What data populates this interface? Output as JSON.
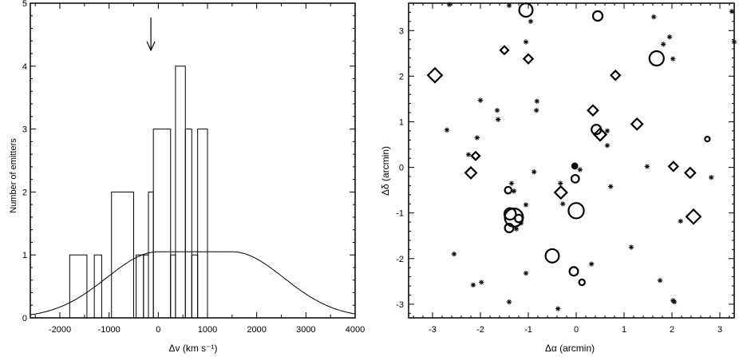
{
  "chart_data": [
    {
      "type": "histogram",
      "xlabel": "Δv (km s⁻¹)",
      "ylabel": "Number of emitters",
      "xlim": [
        -2600,
        4000
      ],
      "ylim": [
        0,
        5
      ],
      "x_ticks": [
        -2000,
        -1000,
        0,
        1000,
        2000,
        3000,
        4000
      ],
      "x_tick_labels": [
        "-2000",
        "-1000",
        "0",
        "1000",
        "2000",
        "3000",
        "4000"
      ],
      "y_ticks": [
        0,
        1,
        2,
        3,
        4,
        5
      ],
      "y_tick_labels": [
        "0",
        "1",
        "2",
        "3",
        "4",
        "5"
      ],
      "bins": [
        {
          "x0": -1800,
          "x1": -1450,
          "count": 1
        },
        {
          "x0": -1300,
          "x1": -1150,
          "count": 1
        },
        {
          "x0": -950,
          "x1": -500,
          "count": 2
        },
        {
          "x0": -450,
          "x1": -300,
          "count": 1
        },
        {
          "x0": -300,
          "x1": -200,
          "count": 1
        },
        {
          "x0": -200,
          "x1": -100,
          "count": 2
        },
        {
          "x0": -100,
          "x1": 250,
          "count": 3
        },
        {
          "x0": 250,
          "x1": 350,
          "count": 1
        },
        {
          "x0": 350,
          "x1": 550,
          "count": 4
        },
        {
          "x0": 550,
          "x1": 680,
          "count": 3
        },
        {
          "x0": 680,
          "x1": 800,
          "count": 1
        },
        {
          "x0": 800,
          "x1": 1000,
          "count": 3
        }
      ],
      "curve": {
        "type": "flat-top response",
        "x0": 0,
        "x1": 1500,
        "height": 1.05,
        "sigma": 1050,
        "xmin": -2600,
        "xmax": 4000
      },
      "arrow_x": -150,
      "arrow_y_range": [
        5.0,
        4.2
      ]
    },
    {
      "type": "scatter",
      "xlabel": "Δα (arcmin)",
      "ylabel": "Δδ (arcmin)",
      "xlim": [
        -3.5,
        3.3
      ],
      "ylim": [
        -3.3,
        3.6
      ],
      "x_ticks": [
        -3,
        -2,
        -1,
        0,
        1,
        2,
        3
      ],
      "x_tick_labels": [
        "-3",
        "-2",
        "-1",
        "0",
        "1",
        "2",
        "3"
      ],
      "y_ticks": [
        -3,
        -2,
        -1,
        0,
        1,
        2,
        3
      ],
      "y_tick_labels": [
        "-3",
        "-2",
        "-1",
        "0",
        "1",
        "2",
        "3"
      ],
      "series": [
        {
          "marker": "circle",
          "points": [
            [
              -1.05,
              3.45,
              1.4
            ],
            [
              0.45,
              3.32,
              1.0
            ],
            [
              1.68,
              2.39,
              1.5
            ],
            [
              0.42,
              0.83,
              1.0
            ],
            [
              2.74,
              0.62,
              0.5
            ],
            [
              -0.02,
              -0.25,
              0.8
            ],
            [
              -1.3,
              -1.1,
              1.9
            ],
            [
              -1.38,
              -1.02,
              1.2
            ],
            [
              -1.4,
              -1.33,
              0.9
            ],
            [
              -1.2,
              -1.12,
              0.8
            ],
            [
              -1.42,
              -0.5,
              0.7
            ],
            [
              0.0,
              -0.95,
              1.6
            ],
            [
              -0.5,
              -1.94,
              1.4
            ],
            [
              -0.05,
              -2.28,
              0.9
            ],
            [
              0.12,
              -2.52,
              0.6
            ]
          ]
        },
        {
          "marker": "diamond",
          "points": [
            [
              -2.95,
              2.02,
              1.4
            ],
            [
              -1.5,
              2.57,
              0.8
            ],
            [
              -1.0,
              2.38,
              0.9
            ],
            [
              0.82,
              2.02,
              0.9
            ],
            [
              0.35,
              1.25,
              1.0
            ],
            [
              0.5,
              0.72,
              1.2
            ],
            [
              1.27,
              0.95,
              1.1
            ],
            [
              -2.1,
              0.25,
              0.8
            ],
            [
              -2.2,
              -0.12,
              1.1
            ],
            [
              2.03,
              0.02,
              0.9
            ],
            [
              2.38,
              -0.12,
              1.0
            ],
            [
              -0.32,
              -0.55,
              1.2
            ],
            [
              2.45,
              -1.08,
              1.4
            ]
          ]
        },
        {
          "marker": "filled-circle",
          "points": [
            [
              -0.03,
              0.03,
              0.6
            ]
          ]
        },
        {
          "marker": "asterisk",
          "points": [
            [
              -2.65,
              3.57
            ],
            [
              -1.4,
              3.55
            ],
            [
              -0.95,
              3.2
            ],
            [
              -1.05,
              2.75
            ],
            [
              1.62,
              3.3
            ],
            [
              1.95,
              2.86
            ],
            [
              1.82,
              2.7
            ],
            [
              2.02,
              2.38
            ],
            [
              3.25,
              3.42
            ],
            [
              3.3,
              2.75
            ],
            [
              -2.0,
              1.47
            ],
            [
              -1.65,
              1.25
            ],
            [
              -1.63,
              1.05
            ],
            [
              -0.83,
              1.25
            ],
            [
              -0.82,
              1.45
            ],
            [
              -2.7,
              0.82
            ],
            [
              -2.07,
              0.65
            ],
            [
              -2.25,
              0.28
            ],
            [
              0.65,
              0.8
            ],
            [
              0.65,
              0.48
            ],
            [
              1.48,
              0.02
            ],
            [
              0.08,
              -0.05
            ],
            [
              -0.88,
              -0.1
            ],
            [
              -1.35,
              -0.35
            ],
            [
              -1.3,
              -0.52
            ],
            [
              -0.28,
              -0.8
            ],
            [
              -0.33,
              -0.35
            ],
            [
              -1.05,
              -0.82
            ],
            [
              0.72,
              -0.42
            ],
            [
              2.82,
              -0.22
            ],
            [
              -1.25,
              -1.35
            ],
            [
              -1.15,
              -1.22
            ],
            [
              2.18,
              -1.18
            ],
            [
              1.15,
              -1.75
            ],
            [
              -2.55,
              -1.9
            ],
            [
              -1.05,
              -2.32
            ],
            [
              -2.15,
              -2.58
            ],
            [
              -1.98,
              -2.52
            ],
            [
              0.32,
              -2.12
            ],
            [
              1.75,
              -2.48
            ],
            [
              2.02,
              -2.92
            ],
            [
              2.05,
              -2.95
            ],
            [
              -1.4,
              -2.95
            ],
            [
              -0.38,
              -3.1
            ]
          ]
        }
      ]
    }
  ]
}
